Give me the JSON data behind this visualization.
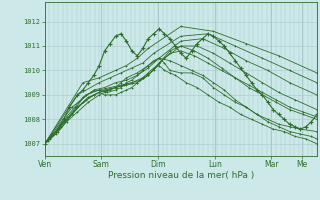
{
  "bg_color": "#cce8e8",
  "grid_color": "#a8c8cc",
  "line_color": "#2d6e2d",
  "ylabel_values": [
    1007,
    1008,
    1009,
    1010,
    1011,
    1012
  ],
  "ylim": [
    1006.5,
    1012.8
  ],
  "xlabel": "Pression niveau de la mer( hPa )",
  "day_labels": [
    "Ven",
    "Sam",
    "Dim",
    "Lun",
    "Mar",
    "Me"
  ],
  "day_positions": [
    0.0,
    0.208,
    0.417,
    0.625,
    0.833,
    0.944
  ],
  "series": [
    {
      "x": [
        0.0,
        0.01,
        0.02,
        0.04,
        0.06,
        0.08,
        0.1,
        0.12,
        0.14,
        0.16,
        0.18,
        0.2,
        0.22,
        0.24,
        0.26,
        0.28,
        0.3,
        0.32,
        0.34,
        0.36,
        0.38,
        0.4,
        0.42,
        0.44,
        0.46,
        0.48,
        0.52,
        0.56,
        0.6,
        0.64,
        0.68,
        0.72,
        0.76,
        0.8,
        0.84,
        0.88,
        0.92,
        0.96,
        1.0
      ],
      "y": [
        1007.0,
        1007.1,
        1007.3,
        1007.5,
        1007.8,
        1008.0,
        1008.2,
        1008.5,
        1008.7,
        1008.9,
        1009.0,
        1009.1,
        1009.0,
        1009.0,
        1009.0,
        1009.1,
        1009.2,
        1009.3,
        1009.5,
        1009.7,
        1009.9,
        1010.1,
        1010.2,
        1010.0,
        1009.9,
        1009.8,
        1009.5,
        1009.3,
        1009.0,
        1008.7,
        1008.5,
        1008.2,
        1008.0,
        1007.8,
        1007.6,
        1007.5,
        1007.3,
        1007.2,
        1007.0
      ]
    },
    {
      "x": [
        0.0,
        0.02,
        0.05,
        0.08,
        0.11,
        0.14,
        0.17,
        0.2,
        0.23,
        0.26,
        0.28,
        0.3,
        0.32,
        0.34,
        0.36,
        0.38,
        0.4,
        0.42,
        0.44,
        0.46,
        0.5,
        0.54,
        0.58,
        0.62,
        0.66,
        0.7,
        0.74,
        0.78,
        0.82,
        0.86,
        0.9,
        0.94,
        0.98,
        1.0
      ],
      "y": [
        1007.0,
        1007.2,
        1007.6,
        1008.1,
        1008.5,
        1008.9,
        1009.1,
        1009.2,
        1009.1,
        1009.2,
        1009.3,
        1009.5,
        1009.6,
        1009.8,
        1010.0,
        1010.2,
        1010.4,
        1010.5,
        1010.3,
        1010.0,
        1009.9,
        1009.9,
        1009.7,
        1009.3,
        1009.0,
        1008.7,
        1008.5,
        1008.2,
        1007.9,
        1007.7,
        1007.5,
        1007.4,
        1007.3,
        1007.2
      ]
    },
    {
      "x": [
        0.0,
        0.04,
        0.08,
        0.12,
        0.16,
        0.2,
        0.22,
        0.24,
        0.26,
        0.28,
        0.3,
        0.34,
        0.38,
        0.42,
        0.46,
        0.5,
        0.54,
        0.58,
        0.62,
        0.66,
        0.7,
        0.74,
        0.78,
        0.82,
        0.86,
        0.9,
        0.94,
        1.0
      ],
      "y": [
        1007.0,
        1007.4,
        1007.9,
        1008.3,
        1008.7,
        1009.0,
        1009.1,
        1009.2,
        1009.3,
        1009.5,
        1009.7,
        1009.9,
        1010.2,
        1010.5,
        1010.4,
        1010.2,
        1010.0,
        1009.8,
        1009.5,
        1009.2,
        1008.8,
        1008.5,
        1008.2,
        1008.0,
        1007.8,
        1007.7,
        1007.6,
        1007.5
      ]
    },
    {
      "x": [
        0.0,
        0.05,
        0.1,
        0.15,
        0.2,
        0.23,
        0.26,
        0.29,
        0.32,
        0.35,
        0.38,
        0.42,
        0.46,
        0.5,
        0.55,
        0.6,
        0.65,
        0.7,
        0.75,
        0.8,
        0.85,
        0.9,
        0.95,
        1.0
      ],
      "y": [
        1007.0,
        1007.5,
        1008.2,
        1008.8,
        1009.1,
        1009.2,
        1009.3,
        1009.4,
        1009.5,
        1009.6,
        1009.8,
        1010.3,
        1010.7,
        1010.8,
        1010.6,
        1010.3,
        1010.0,
        1009.7,
        1009.3,
        1009.0,
        1008.7,
        1008.4,
        1008.2,
        1008.0
      ]
    },
    {
      "x": [
        0.0,
        0.06,
        0.12,
        0.18,
        0.22,
        0.26,
        0.3,
        0.34,
        0.38,
        0.42,
        0.46,
        0.5,
        0.55,
        0.6,
        0.65,
        0.7,
        0.75,
        0.8,
        0.85,
        0.9,
        0.95,
        1.0
      ],
      "y": [
        1007.0,
        1007.7,
        1008.5,
        1009.0,
        1009.2,
        1009.3,
        1009.4,
        1009.5,
        1009.8,
        1010.3,
        1010.8,
        1011.0,
        1010.8,
        1010.5,
        1010.1,
        1009.7,
        1009.4,
        1009.1,
        1008.8,
        1008.5,
        1008.3,
        1008.1
      ]
    },
    {
      "x": [
        0.0,
        0.08,
        0.15,
        0.2,
        0.24,
        0.28,
        0.32,
        0.36,
        0.4,
        0.44,
        0.5,
        0.56,
        0.62,
        0.68,
        0.74,
        0.8,
        0.86,
        0.92,
        1.0
      ],
      "y": [
        1007.0,
        1008.0,
        1009.0,
        1009.2,
        1009.3,
        1009.4,
        1009.5,
        1009.7,
        1010.0,
        1010.5,
        1011.0,
        1011.0,
        1010.7,
        1010.3,
        1009.9,
        1009.5,
        1009.1,
        1008.8,
        1008.4
      ]
    },
    {
      "x": [
        0.0,
        0.1,
        0.18,
        0.22,
        0.26,
        0.3,
        0.34,
        0.38,
        0.42,
        0.5,
        0.58,
        0.66,
        0.74,
        0.82,
        0.9,
        1.0
      ],
      "y": [
        1007.0,
        1008.5,
        1009.2,
        1009.3,
        1009.5,
        1009.6,
        1009.8,
        1010.1,
        1010.5,
        1011.2,
        1011.3,
        1010.9,
        1010.4,
        1010.0,
        1009.5,
        1009.0
      ]
    },
    {
      "x": [
        0.0,
        0.12,
        0.2,
        0.24,
        0.28,
        0.32,
        0.36,
        0.4,
        0.5,
        0.6,
        0.7,
        0.8,
        0.9,
        1.0
      ],
      "y": [
        1007.0,
        1009.0,
        1009.5,
        1009.7,
        1009.9,
        1010.1,
        1010.3,
        1010.7,
        1011.4,
        1011.5,
        1011.0,
        1010.5,
        1010.0,
        1009.5
      ]
    },
    {
      "x": [
        0.0,
        0.14,
        0.2,
        0.26,
        0.3,
        0.34,
        0.38,
        0.5,
        0.62,
        0.74,
        0.86,
        1.0
      ],
      "y": [
        1007.0,
        1009.5,
        1009.7,
        1010.0,
        1010.2,
        1010.5,
        1010.9,
        1011.8,
        1011.6,
        1011.1,
        1010.6,
        1009.9
      ]
    }
  ],
  "wiggly_series": [
    {
      "x": [
        0.0,
        0.04,
        0.07,
        0.09,
        0.12,
        0.14,
        0.16,
        0.18,
        0.2,
        0.22,
        0.24,
        0.26,
        0.28,
        0.3,
        0.32,
        0.34,
        0.36,
        0.38,
        0.4,
        0.42,
        0.44,
        0.46,
        0.48,
        0.5,
        0.52,
        0.54,
        0.56,
        0.58,
        0.6,
        0.62,
        0.64,
        0.66,
        0.68,
        0.7,
        0.72,
        0.74,
        0.76,
        0.78,
        0.8,
        0.82,
        0.84,
        0.86,
        0.88,
        0.9,
        0.92,
        0.94,
        0.96,
        0.98,
        1.0
      ],
      "y": [
        1007.0,
        1007.5,
        1008.0,
        1008.5,
        1009.0,
        1009.2,
        1009.5,
        1009.8,
        1010.2,
        1010.8,
        1011.1,
        1011.4,
        1011.5,
        1011.2,
        1010.8,
        1010.6,
        1010.9,
        1011.3,
        1011.5,
        1011.7,
        1011.5,
        1011.3,
        1011.0,
        1010.7,
        1010.5,
        1010.8,
        1011.1,
        1011.3,
        1011.5,
        1011.4,
        1011.2,
        1011.0,
        1010.7,
        1010.4,
        1010.1,
        1009.8,
        1009.5,
        1009.2,
        1009.0,
        1008.7,
        1008.4,
        1008.2,
        1008.0,
        1007.8,
        1007.7,
        1007.6,
        1007.7,
        1007.9,
        1008.2
      ]
    }
  ]
}
